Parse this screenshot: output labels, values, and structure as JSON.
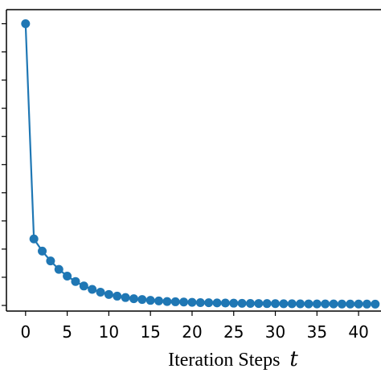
{
  "chart_data": {
    "type": "line",
    "title": "",
    "xlabel": "Iteration Steps",
    "xlabel_var": "t",
    "ylabel": "",
    "xlim": [
      -2.3,
      42.5
    ],
    "ylim": [
      -0.02,
      1.05
    ],
    "xticks": [
      0,
      5,
      10,
      15,
      20,
      25,
      30,
      35,
      40
    ],
    "grid": false,
    "legend": "none",
    "color": "#1f77b4",
    "series": [
      {
        "x": [
          0,
          1,
          2,
          3,
          4,
          5,
          6,
          7,
          8,
          9,
          10,
          11,
          12,
          13,
          14,
          15,
          16,
          17,
          18,
          19,
          20,
          21,
          22,
          23,
          24,
          25,
          26,
          27,
          28,
          29,
          30,
          31,
          32,
          33,
          34,
          35,
          36,
          37,
          38,
          39,
          40,
          41,
          42
        ],
        "values": [
          1.0,
          0.236,
          0.193,
          0.158,
          0.128,
          0.104,
          0.085,
          0.069,
          0.057,
          0.047,
          0.039,
          0.033,
          0.028,
          0.024,
          0.021,
          0.018,
          0.016,
          0.014,
          0.013,
          0.012,
          0.011,
          0.01,
          0.0095,
          0.009,
          0.0085,
          0.008,
          0.0076,
          0.0072,
          0.0069,
          0.0066,
          0.0063,
          0.0061,
          0.0059,
          0.0057,
          0.0055,
          0.0054,
          0.0053,
          0.0052,
          0.0051,
          0.005,
          0.0049,
          0.0048,
          0.0047
        ]
      }
    ]
  }
}
